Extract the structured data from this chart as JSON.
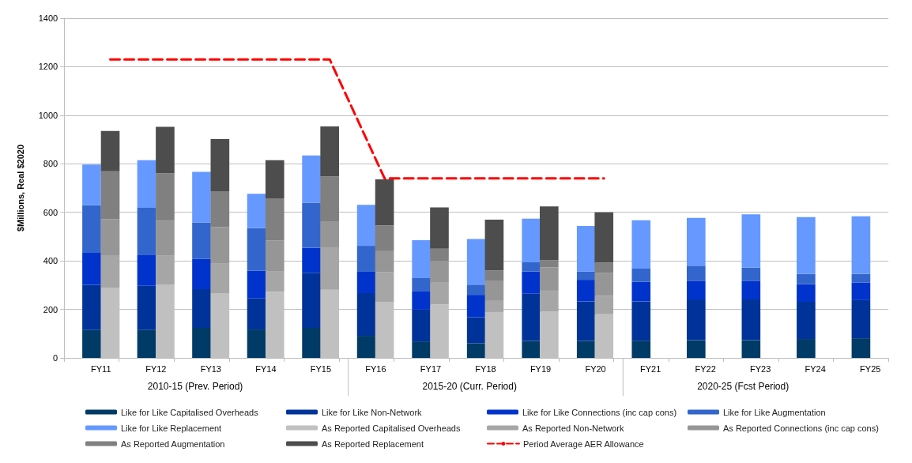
{
  "chart_data": [
    {
      "type": "bar",
      "stacked": true,
      "ylabel": "$Millions, Real $2020",
      "categories": [
        "FY11",
        "FY12",
        "FY13",
        "FY14",
        "FY15",
        "FY16",
        "FY17",
        "FY18",
        "FY19",
        "FY20",
        "FY21",
        "FY22",
        "FY23",
        "FY24",
        "FY25"
      ],
      "series": [
        {
          "name": "Like for Like Capitalised Overheads",
          "color": "#003a66",
          "values": [
            115,
            115,
            124,
            117,
            124,
            91,
            68,
            60,
            70,
            70,
            71,
            73,
            73,
            78,
            81
          ]
        },
        {
          "name": "Like for Like Non-Network",
          "color": "#003399",
          "values": [
            186,
            182,
            159,
            128,
            227,
            176,
            131,
            108,
            195,
            163,
            162,
            168,
            168,
            153,
            157
          ]
        },
        {
          "name": "Like for Like Connections (inc cap cons)",
          "color": "#0033cc",
          "values": [
            132,
            126,
            125,
            114,
            102,
            88,
            77,
            92,
            91,
            89,
            81,
            77,
            77,
            73,
            73
          ]
        },
        {
          "name": "Like for Like Augmentation",
          "color": "#3366cc",
          "values": [
            196,
            196,
            150,
            176,
            187,
            107,
            53,
            42,
            38,
            34,
            54,
            62,
            54,
            42,
            35
          ]
        },
        {
          "name": "Like for Like Replacement",
          "color": "#6699ff",
          "values": [
            168,
            196,
            209,
            141,
            194,
            169,
            156,
            188,
            180,
            188,
            199,
            197,
            220,
            234,
            238
          ]
        }
      ],
      "annotations": [
        "2010-15 (Prev. Period)",
        "2015-20 (Curr. Period)",
        "2020-25 (Fcst Period)"
      ],
      "ylim": [
        0,
        1400
      ],
      "yticks": [
        0,
        200,
        400,
        600,
        800,
        1000,
        1200,
        1400
      ],
      "grid": "y",
      "legend": "bottom"
    },
    {
      "type": "bar",
      "stacked": true,
      "categories": [
        null,
        null,
        null,
        null,
        null,
        null,
        null,
        null,
        null,
        null,
        null,
        null,
        null,
        null,
        null
      ],
      "series": [
        {
          "name": "As Reported Capitalised Overheads",
          "color": "#c0c0c0",
          "values": [
            290,
            301,
            267,
            273,
            281,
            231,
            220,
            189,
            191,
            180,
            null,
            null,
            null,
            null,
            null
          ]
        },
        {
          "name": "As Reported Non-Network",
          "color": "#a6a6a6",
          "values": [
            133,
            122,
            121,
            83,
            175,
            122,
            90,
            46,
            86,
            76,
            null,
            null,
            null,
            null,
            null
          ]
        },
        {
          "name": "As Reported Connections (inc cap cons)",
          "color": "#969696",
          "values": [
            149,
            143,
            152,
            128,
            105,
            87,
            89,
            84,
            96,
            95,
            null,
            null,
            null,
            null,
            null
          ]
        },
        {
          "name": "As Reported Augmentation",
          "color": "#808080",
          "values": [
            197,
            195,
            147,
            174,
            187,
            106,
            51,
            42,
            30,
            41,
            null,
            null,
            null,
            null,
            null
          ]
        },
        {
          "name": "As Reported Replacement",
          "color": "#4d4d4d",
          "values": [
            166,
            191,
            215,
            157,
            206,
            190,
            170,
            209,
            221,
            208,
            null,
            null,
            null,
            null,
            null
          ]
        },
        {
          "name": "Period Average AER Allowance",
          "type": "line",
          "line_style": "dashed",
          "marker": "none",
          "color": "#ff0000",
          "values": [
            1230,
            1230,
            1230,
            1230,
            1230,
            740,
            740,
            740,
            740,
            740,
            null,
            null,
            null,
            null,
            null
          ]
        }
      ],
      "ylim": [
        0,
        1400
      ],
      "yticks": [
        0,
        200,
        400,
        600,
        800,
        1000,
        1200,
        1400
      ],
      "tick_labels": false,
      "legend": "bottom"
    }
  ]
}
